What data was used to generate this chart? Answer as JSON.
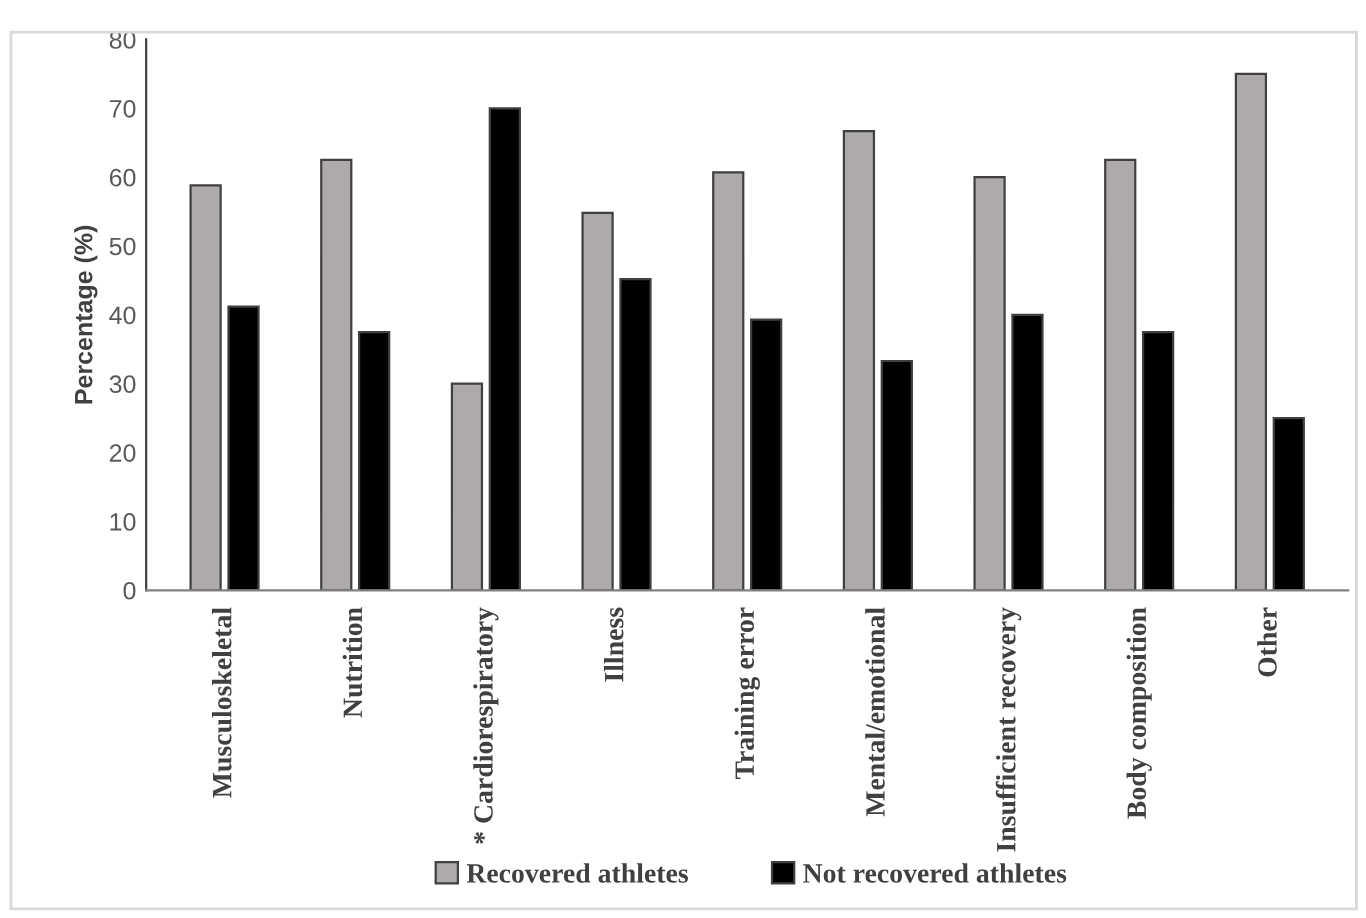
{
  "chart_data": {
    "type": "bar",
    "ylabel": "Percentage (%)",
    "categories": [
      "Musculoskeletal",
      "Nutrition",
      "* Cardiorespiratory",
      "Illness",
      "Training error",
      "Mental/emotional",
      "Insufficient recovery",
      "Body composition",
      "Other"
    ],
    "series": [
      {
        "name": "Recovered athletes",
        "color": "#aeaaaa",
        "values": [
          58.8,
          62.5,
          30,
          54.8,
          60.7,
          66.7,
          60,
          62.5,
          75
        ]
      },
      {
        "name": "Not recovered athletes",
        "color": "#000000",
        "values": [
          41.2,
          37.5,
          70,
          45.2,
          39.3,
          33.3,
          40,
          37.5,
          25
        ]
      }
    ],
    "ylim": [
      0,
      80
    ],
    "yticks": [
      0,
      10,
      20,
      30,
      40,
      50,
      60,
      70,
      80
    ],
    "grid": false,
    "legend": "bottom"
  }
}
